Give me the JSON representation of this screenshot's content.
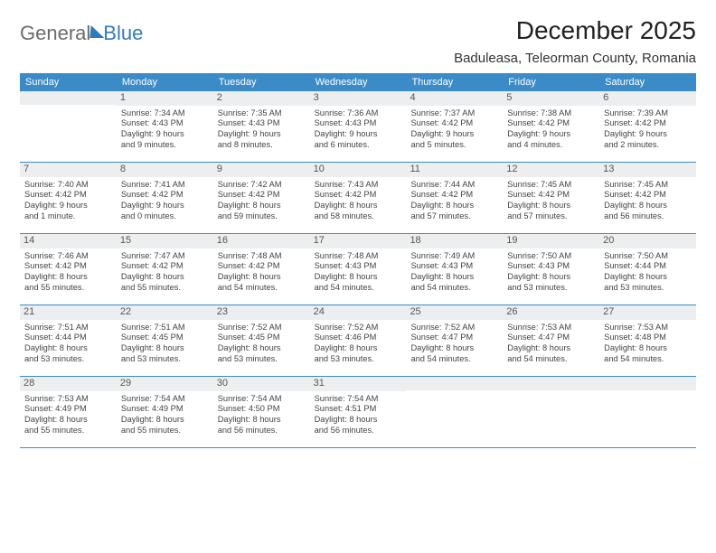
{
  "logo": {
    "part1": "General",
    "part2": "Blue"
  },
  "title": "December 2025",
  "location": "Baduleasa, Teleorman County, Romania",
  "colors": {
    "accent": "#3b8bc9",
    "daynum_bg": "#eceeef",
    "text": "#444444"
  },
  "days_of_week": [
    "Sunday",
    "Monday",
    "Tuesday",
    "Wednesday",
    "Thursday",
    "Friday",
    "Saturday"
  ],
  "weeks": [
    [
      {
        "num": "",
        "lines": []
      },
      {
        "num": "1",
        "lines": [
          "Sunrise: 7:34 AM",
          "Sunset: 4:43 PM",
          "Daylight: 9 hours",
          "and 9 minutes."
        ]
      },
      {
        "num": "2",
        "lines": [
          "Sunrise: 7:35 AM",
          "Sunset: 4:43 PM",
          "Daylight: 9 hours",
          "and 8 minutes."
        ]
      },
      {
        "num": "3",
        "lines": [
          "Sunrise: 7:36 AM",
          "Sunset: 4:43 PM",
          "Daylight: 9 hours",
          "and 6 minutes."
        ]
      },
      {
        "num": "4",
        "lines": [
          "Sunrise: 7:37 AM",
          "Sunset: 4:42 PM",
          "Daylight: 9 hours",
          "and 5 minutes."
        ]
      },
      {
        "num": "5",
        "lines": [
          "Sunrise: 7:38 AM",
          "Sunset: 4:42 PM",
          "Daylight: 9 hours",
          "and 4 minutes."
        ]
      },
      {
        "num": "6",
        "lines": [
          "Sunrise: 7:39 AM",
          "Sunset: 4:42 PM",
          "Daylight: 9 hours",
          "and 2 minutes."
        ]
      }
    ],
    [
      {
        "num": "7",
        "lines": [
          "Sunrise: 7:40 AM",
          "Sunset: 4:42 PM",
          "Daylight: 9 hours",
          "and 1 minute."
        ]
      },
      {
        "num": "8",
        "lines": [
          "Sunrise: 7:41 AM",
          "Sunset: 4:42 PM",
          "Daylight: 9 hours",
          "and 0 minutes."
        ]
      },
      {
        "num": "9",
        "lines": [
          "Sunrise: 7:42 AM",
          "Sunset: 4:42 PM",
          "Daylight: 8 hours",
          "and 59 minutes."
        ]
      },
      {
        "num": "10",
        "lines": [
          "Sunrise: 7:43 AM",
          "Sunset: 4:42 PM",
          "Daylight: 8 hours",
          "and 58 minutes."
        ]
      },
      {
        "num": "11",
        "lines": [
          "Sunrise: 7:44 AM",
          "Sunset: 4:42 PM",
          "Daylight: 8 hours",
          "and 57 minutes."
        ]
      },
      {
        "num": "12",
        "lines": [
          "Sunrise: 7:45 AM",
          "Sunset: 4:42 PM",
          "Daylight: 8 hours",
          "and 57 minutes."
        ]
      },
      {
        "num": "13",
        "lines": [
          "Sunrise: 7:45 AM",
          "Sunset: 4:42 PM",
          "Daylight: 8 hours",
          "and 56 minutes."
        ]
      }
    ],
    [
      {
        "num": "14",
        "lines": [
          "Sunrise: 7:46 AM",
          "Sunset: 4:42 PM",
          "Daylight: 8 hours",
          "and 55 minutes."
        ]
      },
      {
        "num": "15",
        "lines": [
          "Sunrise: 7:47 AM",
          "Sunset: 4:42 PM",
          "Daylight: 8 hours",
          "and 55 minutes."
        ]
      },
      {
        "num": "16",
        "lines": [
          "Sunrise: 7:48 AM",
          "Sunset: 4:42 PM",
          "Daylight: 8 hours",
          "and 54 minutes."
        ]
      },
      {
        "num": "17",
        "lines": [
          "Sunrise: 7:48 AM",
          "Sunset: 4:43 PM",
          "Daylight: 8 hours",
          "and 54 minutes."
        ]
      },
      {
        "num": "18",
        "lines": [
          "Sunrise: 7:49 AM",
          "Sunset: 4:43 PM",
          "Daylight: 8 hours",
          "and 54 minutes."
        ]
      },
      {
        "num": "19",
        "lines": [
          "Sunrise: 7:50 AM",
          "Sunset: 4:43 PM",
          "Daylight: 8 hours",
          "and 53 minutes."
        ]
      },
      {
        "num": "20",
        "lines": [
          "Sunrise: 7:50 AM",
          "Sunset: 4:44 PM",
          "Daylight: 8 hours",
          "and 53 minutes."
        ]
      }
    ],
    [
      {
        "num": "21",
        "lines": [
          "Sunrise: 7:51 AM",
          "Sunset: 4:44 PM",
          "Daylight: 8 hours",
          "and 53 minutes."
        ]
      },
      {
        "num": "22",
        "lines": [
          "Sunrise: 7:51 AM",
          "Sunset: 4:45 PM",
          "Daylight: 8 hours",
          "and 53 minutes."
        ]
      },
      {
        "num": "23",
        "lines": [
          "Sunrise: 7:52 AM",
          "Sunset: 4:45 PM",
          "Daylight: 8 hours",
          "and 53 minutes."
        ]
      },
      {
        "num": "24",
        "lines": [
          "Sunrise: 7:52 AM",
          "Sunset: 4:46 PM",
          "Daylight: 8 hours",
          "and 53 minutes."
        ]
      },
      {
        "num": "25",
        "lines": [
          "Sunrise: 7:52 AM",
          "Sunset: 4:47 PM",
          "Daylight: 8 hours",
          "and 54 minutes."
        ]
      },
      {
        "num": "26",
        "lines": [
          "Sunrise: 7:53 AM",
          "Sunset: 4:47 PM",
          "Daylight: 8 hours",
          "and 54 minutes."
        ]
      },
      {
        "num": "27",
        "lines": [
          "Sunrise: 7:53 AM",
          "Sunset: 4:48 PM",
          "Daylight: 8 hours",
          "and 54 minutes."
        ]
      }
    ],
    [
      {
        "num": "28",
        "lines": [
          "Sunrise: 7:53 AM",
          "Sunset: 4:49 PM",
          "Daylight: 8 hours",
          "and 55 minutes."
        ]
      },
      {
        "num": "29",
        "lines": [
          "Sunrise: 7:54 AM",
          "Sunset: 4:49 PM",
          "Daylight: 8 hours",
          "and 55 minutes."
        ]
      },
      {
        "num": "30",
        "lines": [
          "Sunrise: 7:54 AM",
          "Sunset: 4:50 PM",
          "Daylight: 8 hours",
          "and 56 minutes."
        ]
      },
      {
        "num": "31",
        "lines": [
          "Sunrise: 7:54 AM",
          "Sunset: 4:51 PM",
          "Daylight: 8 hours",
          "and 56 minutes."
        ]
      },
      {
        "num": "",
        "lines": []
      },
      {
        "num": "",
        "lines": []
      },
      {
        "num": "",
        "lines": []
      }
    ]
  ]
}
